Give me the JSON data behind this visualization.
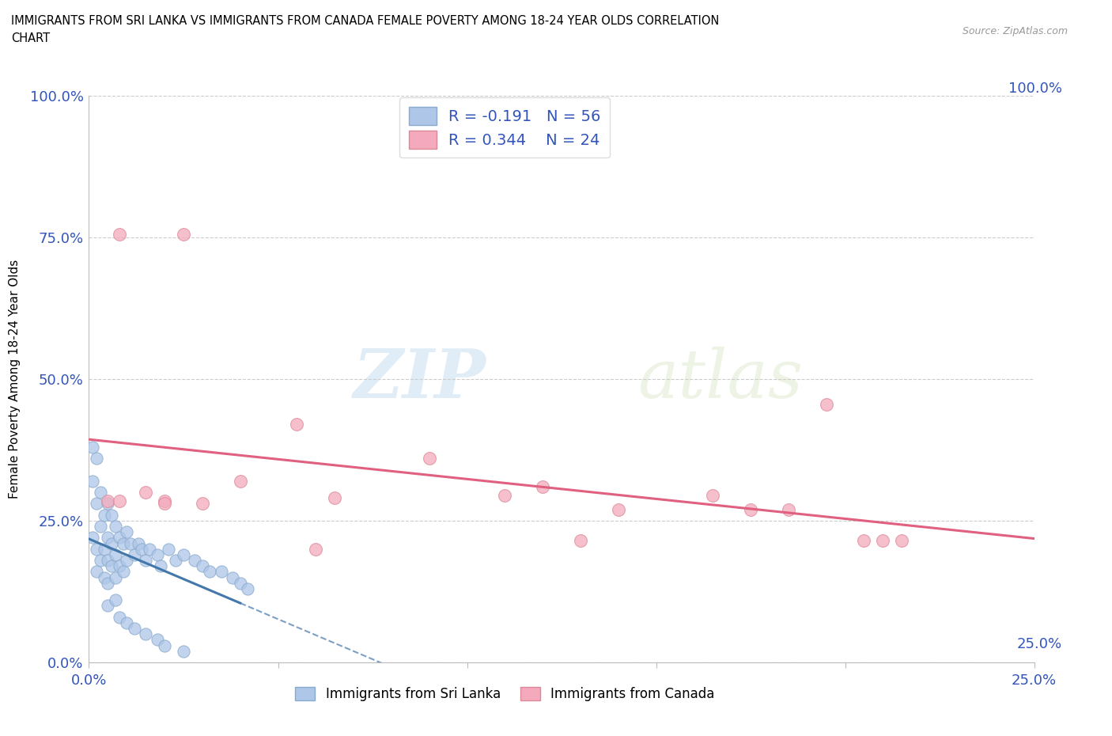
{
  "title": "IMMIGRANTS FROM SRI LANKA VS IMMIGRANTS FROM CANADA FEMALE POVERTY AMONG 18-24 YEAR OLDS CORRELATION\nCHART",
  "source": "Source: ZipAtlas.com",
  "ylabel": "Female Poverty Among 18-24 Year Olds",
  "xlim": [
    0,
    0.25
  ],
  "ylim": [
    0,
    1.0
  ],
  "x_ticks": [
    0.0,
    0.05,
    0.1,
    0.15,
    0.2,
    0.25
  ],
  "y_ticks": [
    0.0,
    0.25,
    0.5,
    0.75,
    1.0
  ],
  "x_tick_labels": [
    "0.0%",
    "",
    "",
    "",
    "",
    "25.0%"
  ],
  "y_tick_labels": [
    "0.0%",
    "25.0%",
    "50.0%",
    "75.0%",
    "100.0%"
  ],
  "sri_lanka_color": "#aec6e8",
  "sri_lanka_edge": "#88aacc",
  "canada_color": "#f4aabc",
  "canada_edge": "#dd8899",
  "sri_lanka_R": -0.191,
  "sri_lanka_N": 56,
  "canada_R": 0.344,
  "canada_N": 24,
  "watermark_zip": "ZIP",
  "watermark_atlas": "atlas",
  "sl_trend_color": "#4477aa",
  "ca_trend_color": "#e06080",
  "legend_R_color": "#3355bb",
  "legend_N_color": "#3355bb",
  "sl_x": [
    0.001,
    0.001,
    0.002,
    0.002,
    0.002,
    0.003,
    0.003,
    0.003,
    0.004,
    0.004,
    0.004,
    0.005,
    0.005,
    0.005,
    0.005,
    0.006,
    0.006,
    0.006,
    0.007,
    0.007,
    0.007,
    0.008,
    0.008,
    0.009,
    0.009,
    0.01,
    0.01,
    0.011,
    0.012,
    0.013,
    0.014,
    0.015,
    0.016,
    0.018,
    0.019,
    0.021,
    0.023,
    0.025,
    0.028,
    0.03,
    0.032,
    0.035,
    0.038,
    0.04,
    0.042,
    0.005,
    0.007,
    0.008,
    0.01,
    0.012,
    0.015,
    0.018,
    0.02,
    0.025,
    0.001,
    0.002
  ],
  "sl_y": [
    0.32,
    0.22,
    0.28,
    0.2,
    0.16,
    0.3,
    0.24,
    0.18,
    0.26,
    0.2,
    0.15,
    0.28,
    0.22,
    0.18,
    0.14,
    0.26,
    0.21,
    0.17,
    0.24,
    0.19,
    0.15,
    0.22,
    0.17,
    0.21,
    0.16,
    0.23,
    0.18,
    0.21,
    0.19,
    0.21,
    0.2,
    0.18,
    0.2,
    0.19,
    0.17,
    0.2,
    0.18,
    0.19,
    0.18,
    0.17,
    0.16,
    0.16,
    0.15,
    0.14,
    0.13,
    0.1,
    0.11,
    0.08,
    0.07,
    0.06,
    0.05,
    0.04,
    0.03,
    0.02,
    0.38,
    0.36
  ],
  "ca_x": [
    0.008,
    0.025,
    0.005,
    0.015,
    0.02,
    0.03,
    0.04,
    0.055,
    0.065,
    0.09,
    0.11,
    0.12,
    0.14,
    0.165,
    0.175,
    0.185,
    0.195,
    0.205,
    0.21,
    0.215,
    0.008,
    0.02,
    0.06,
    0.13
  ],
  "ca_y": [
    0.755,
    0.755,
    0.285,
    0.3,
    0.285,
    0.28,
    0.32,
    0.42,
    0.29,
    0.36,
    0.295,
    0.31,
    0.27,
    0.295,
    0.27,
    0.27,
    0.455,
    0.215,
    0.215,
    0.215,
    0.285,
    0.28,
    0.2,
    0.215
  ]
}
